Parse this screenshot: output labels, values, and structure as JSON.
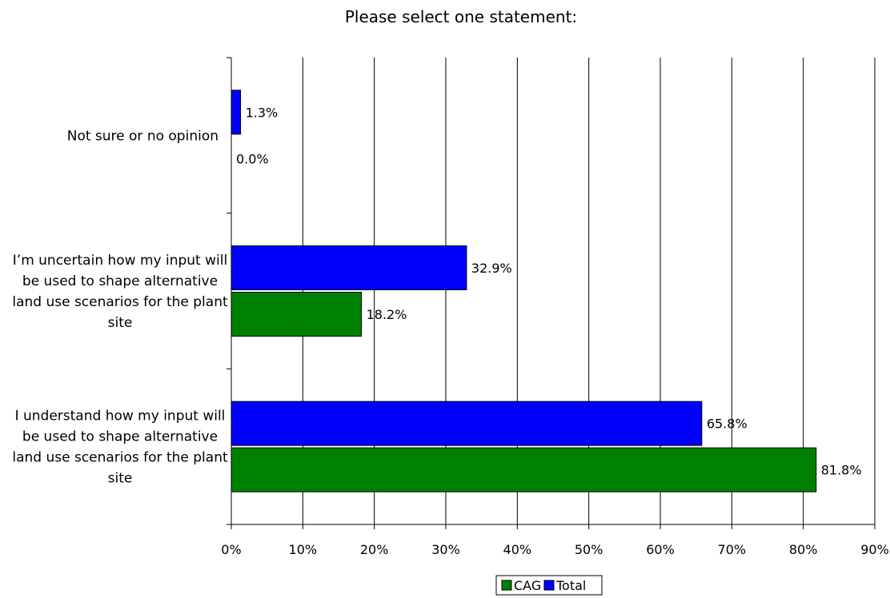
{
  "chart_data": {
    "type": "bar",
    "orientation": "horizontal",
    "title": "Please select one statement:",
    "categories": [
      "Not sure or no opinion",
      "I'm uncertain how my input will be used to shape alternative land use scenarios for the plant site",
      "I understand how my input will be used to shape alternative land use scenarios for the plant site"
    ],
    "category_lines": [
      [
        "Not sure or no opinion"
      ],
      [
        "I’m uncertain how my input will",
        "be used to shape alternative",
        "land use scenarios for the plant",
        "site"
      ],
      [
        "I understand how my input will",
        "be used to shape alternative",
        "land use scenarios for the plant",
        "site"
      ]
    ],
    "series": [
      {
        "name": "Total",
        "color": "#0000FF",
        "values": [
          1.3,
          32.9,
          65.8
        ],
        "labels": [
          "1.3%",
          "32.9%",
          "65.8%"
        ]
      },
      {
        "name": "CAG",
        "color": "#008000",
        "values": [
          0.0,
          18.2,
          81.8
        ],
        "labels": [
          "0.0%",
          "18.2%",
          "81.8%"
        ]
      }
    ],
    "legend_order": [
      "CAG",
      "Total"
    ],
    "xlim": [
      0,
      90
    ],
    "xticks": [
      "0%",
      "10%",
      "20%",
      "30%",
      "40%",
      "50%",
      "60%",
      "70%",
      "80%",
      "90%"
    ],
    "xlabel": "",
    "ylabel": "",
    "grid": "vertical",
    "legend_position": "bottom"
  }
}
